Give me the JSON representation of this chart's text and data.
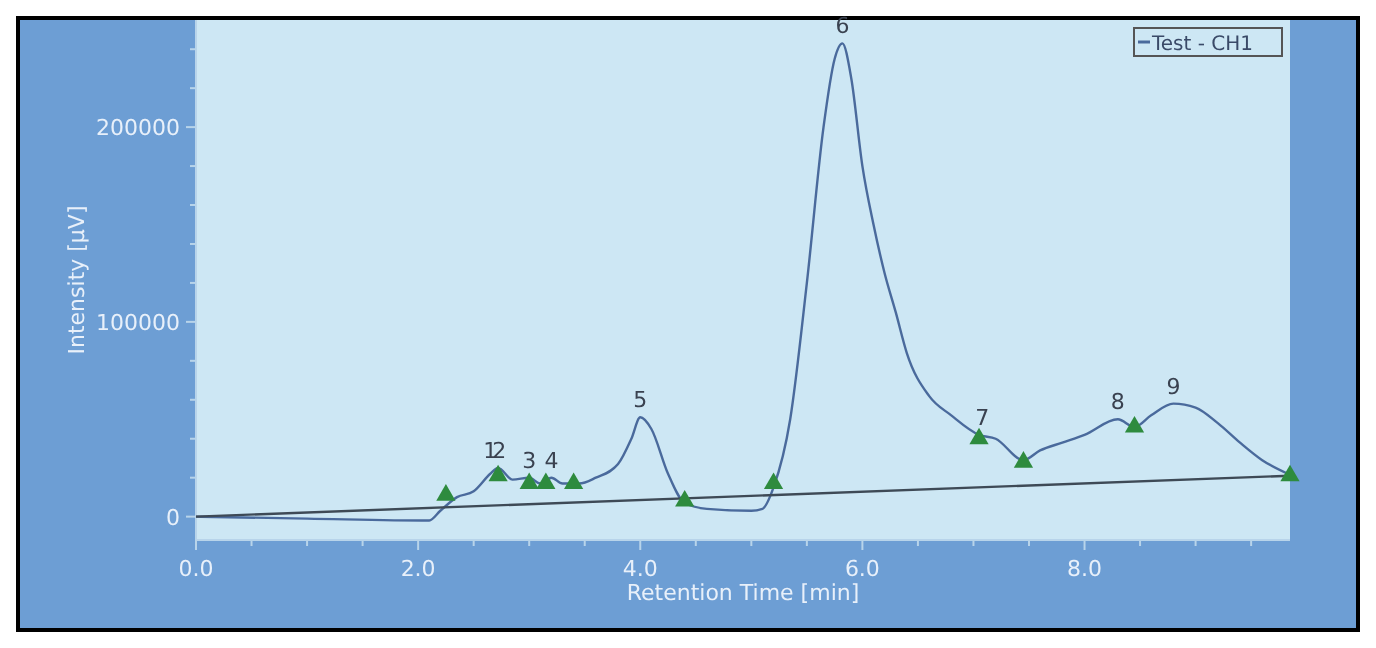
{
  "chart_data": {
    "type": "line",
    "xlabel": "Retention Time [min]",
    "ylabel": "Intensity [µV]",
    "xlim": [
      0,
      9.85
    ],
    "xticks": [
      {
        "value": 0,
        "label": "0.0"
      },
      {
        "value": 0.5,
        "label": null
      },
      {
        "value": 1,
        "label": null
      },
      {
        "value": 1.5,
        "label": null
      },
      {
        "value": 2,
        "label": "2.0"
      },
      {
        "value": 2.5,
        "label": null
      },
      {
        "value": 3,
        "label": null
      },
      {
        "value": 3.5,
        "label": null
      },
      {
        "value": 4,
        "label": "4.0"
      },
      {
        "value": 4.5,
        "label": null
      },
      {
        "value": 5,
        "label": null
      },
      {
        "value": 5.5,
        "label": null
      },
      {
        "value": 6,
        "label": "6.0"
      },
      {
        "value": 6.5,
        "label": null
      },
      {
        "value": 7,
        "label": null
      },
      {
        "value": 7.5,
        "label": null
      },
      {
        "value": 8,
        "label": "8.0"
      },
      {
        "value": 8.5,
        "label": null
      },
      {
        "value": 9,
        "label": null
      },
      {
        "value": 9.5,
        "label": null
      }
    ],
    "ylim": [
      -12000,
      255000
    ],
    "yticks": [
      0,
      {
        "value": 20000,
        "label": null
      },
      {
        "value": 40000,
        "label": null
      },
      {
        "value": 60000,
        "label": null
      },
      {
        "value": 80000,
        "label": null
      },
      100000,
      {
        "value": 120000,
        "label": null
      },
      {
        "value": 140000,
        "label": null
      },
      {
        "value": 160000,
        "label": null
      },
      {
        "value": 180000,
        "label": null
      },
      200000,
      {
        "value": 220000,
        "label": null
      },
      {
        "value": 240000,
        "label": null
      }
    ],
    "grid": false,
    "legend": "top right",
    "series": [
      {
        "name": "Test - CH1",
        "color": "#4a6a9c",
        "x": [
          0,
          1.0,
          2.1,
          2.2,
          2.35,
          2.5,
          2.65,
          2.72,
          2.85,
          3.0,
          3.1,
          3.2,
          3.3,
          3.45,
          3.6,
          3.8,
          3.92,
          4.0,
          4.1,
          4.25,
          4.4,
          4.6,
          5.0,
          5.1,
          5.2,
          5.35,
          5.5,
          5.65,
          5.75,
          5.82,
          5.9,
          6.0,
          6.1,
          6.2,
          6.3,
          6.4,
          6.6,
          6.8,
          7.05,
          7.2,
          7.45,
          7.6,
          7.8,
          8.0,
          8.3,
          8.45,
          8.6,
          8.8,
          9.0,
          9.2,
          9.4,
          9.6,
          9.85
        ],
        "values": [
          0,
          -1000,
          -2000,
          3000,
          10000,
          13000,
          22000,
          25000,
          19000,
          20000,
          17000,
          20000,
          17000,
          17000,
          20000,
          27000,
          40000,
          51000,
          45000,
          22000,
          7000,
          4000,
          3000,
          4000,
          15000,
          50000,
          120000,
          200000,
          235000,
          243000,
          225000,
          180000,
          150000,
          125000,
          105000,
          84000,
          62000,
          52000,
          42000,
          40000,
          29000,
          34000,
          38000,
          42000,
          50000,
          46000,
          52000,
          58000,
          56000,
          48000,
          38000,
          29000,
          21500
        ]
      },
      {
        "color": "#3e4a56",
        "x": [
          0,
          9.85
        ],
        "values": [
          0,
          21000
        ]
      },
      {
        "type": "scatter",
        "marker": "triangle",
        "color": "#2e8b3e",
        "x": [
          2.25,
          2.72,
          3.0,
          3.15,
          3.4,
          4.4,
          5.2,
          7.05,
          7.45,
          8.45,
          9.85
        ],
        "values": [
          11000,
          21000,
          17000,
          17000,
          17000,
          8000,
          17000,
          40000,
          28000,
          46000,
          21000
        ]
      }
    ],
    "annotations": [
      {
        "text": "1",
        "x": 2.65,
        "y": 25000
      },
      {
        "text": "2",
        "x": 2.73,
        "y": 25000
      },
      {
        "text": "3",
        "x": 3.0,
        "y": 20000
      },
      {
        "text": "4",
        "x": 3.2,
        "y": 20000
      },
      {
        "text": "5",
        "x": 4.0,
        "y": 51000
      },
      {
        "text": "6",
        "x": 5.82,
        "y": 243000
      },
      {
        "text": "7",
        "x": 7.08,
        "y": 42000
      },
      {
        "text": "8",
        "x": 8.3,
        "y": 50000
      },
      {
        "text": "9",
        "x": 8.8,
        "y": 58000
      }
    ]
  }
}
